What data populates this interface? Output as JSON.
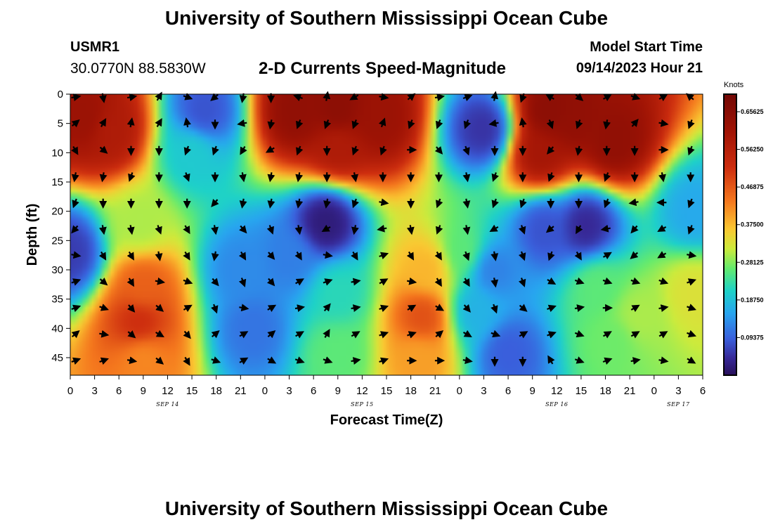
{
  "header": {
    "title": "University of Southern Mississippi Ocean Cube",
    "station_id": "USMR1",
    "station_coords": "30.0770N  88.5830W",
    "subtitle": "2-D Currents Speed-Magnitude",
    "model_start_label": "Model Start Time",
    "model_start_value": "09/14/2023 Hour 21"
  },
  "footer": {
    "title": "University of Southern Mississippi Ocean Cube"
  },
  "chart_data": {
    "type": "heatmap",
    "title": "2-D Currents Speed-Magnitude",
    "xlabel": "Forecast Time(Z)",
    "ylabel": "Depth (ft)",
    "x_range_hours": [
      0,
      78
    ],
    "y_range_ft": [
      0,
      48
    ],
    "x_tick_labels": [
      "0",
      "3",
      "6",
      "9",
      "12",
      "15",
      "18",
      "21",
      "0",
      "3",
      "6",
      "9",
      "12",
      "15",
      "18",
      "21",
      "0",
      "3",
      "6",
      "9",
      "12",
      "15",
      "18",
      "21",
      "0",
      "3",
      "6"
    ],
    "y_ticks": [
      0,
      5,
      10,
      15,
      20,
      25,
      30,
      35,
      40,
      45
    ],
    "date_labels": [
      {
        "text": "SEP 14",
        "hour": 12
      },
      {
        "text": "SEP 15",
        "hour": 36
      },
      {
        "text": "SEP 16",
        "hour": 60
      },
      {
        "text": "SEP 17",
        "hour": 75
      }
    ],
    "colorbar": {
      "label": "Knots",
      "range": [
        0,
        0.7
      ],
      "ticks": [
        "0.65625",
        "0.56250",
        "0.46875",
        "0.37500",
        "0.28125",
        "0.18750",
        "0.09375"
      ],
      "tick_values": [
        0.65625,
        0.5625,
        0.46875,
        0.375,
        0.28125,
        0.1875,
        0.09375
      ]
    },
    "speed_blobs": [
      {
        "x": 2,
        "y": 4,
        "v": 0.62
      },
      {
        "x": 5,
        "y": 6,
        "v": 0.58
      },
      {
        "x": 8.5,
        "y": 39,
        "v": 0.52
      },
      {
        "x": 9,
        "y": 33,
        "v": 0.46
      },
      {
        "x": 8.5,
        "y": 22,
        "v": 0.3
      },
      {
        "x": 9,
        "y": 45,
        "v": 0.42
      },
      {
        "x": 16.5,
        "y": 3,
        "v": 0.08
      },
      {
        "x": 15,
        "y": 10,
        "v": 0.2
      },
      {
        "x": 0,
        "y": 27,
        "v": 0.06
      },
      {
        "x": 21,
        "y": 30,
        "v": 0.13
      },
      {
        "x": 22.5,
        "y": 40,
        "v": 0.11
      },
      {
        "x": 27,
        "y": 28,
        "v": 0.12
      },
      {
        "x": 28,
        "y": 3,
        "v": 0.64
      },
      {
        "x": 33,
        "y": 3,
        "v": 0.65
      },
      {
        "x": 38,
        "y": 4,
        "v": 0.62
      },
      {
        "x": 33,
        "y": 8.5,
        "v": 0.58
      },
      {
        "x": 31.5,
        "y": 22,
        "v": 0.02
      },
      {
        "x": 33,
        "y": 34,
        "v": 0.22
      },
      {
        "x": 33,
        "y": 44,
        "v": 0.26
      },
      {
        "x": 43.5,
        "y": 38,
        "v": 0.48
      },
      {
        "x": 44,
        "y": 30,
        "v": 0.38
      },
      {
        "x": 43,
        "y": 45,
        "v": 0.4
      },
      {
        "x": 48.5,
        "y": 27,
        "v": 0.26
      },
      {
        "x": 50,
        "y": 37,
        "v": 0.17
      },
      {
        "x": 51,
        "y": 6,
        "v": 0.05
      },
      {
        "x": 52,
        "y": 30,
        "v": 0.12
      },
      {
        "x": 54,
        "y": 44,
        "v": 0.09
      },
      {
        "x": 59,
        "y": 3,
        "v": 0.65
      },
      {
        "x": 62,
        "y": 4,
        "v": 0.64
      },
      {
        "x": 67,
        "y": 8,
        "v": 0.64
      },
      {
        "x": 58,
        "y": 10,
        "v": 0.6
      },
      {
        "x": 63.5,
        "y": 22.5,
        "v": 0.04
      },
      {
        "x": 58.5,
        "y": 23,
        "v": 0.08
      },
      {
        "x": 65,
        "y": 33,
        "v": 0.26
      },
      {
        "x": 67,
        "y": 42,
        "v": 0.27
      },
      {
        "x": 70,
        "y": 38,
        "v": 0.3
      },
      {
        "x": 77,
        "y": 34,
        "v": 0.33
      },
      {
        "x": 77,
        "y": 20,
        "v": 0.16
      }
    ],
    "vector_directions_deg": [
      [
        80,
        170,
        80,
        30,
        110,
        230,
        190,
        180,
        290,
        10,
        240,
        100,
        50,
        80,
        70,
        10,
        200,
        300,
        130,
        60,
        110,
        60,
        310
      ],
      [
        50,
        30,
        10,
        30,
        350,
        180,
        260,
        190,
        200,
        200,
        200,
        20,
        200,
        200,
        200,
        260,
        350,
        160,
        200,
        190,
        40,
        100,
        200
      ],
      [
        150,
        130,
        180,
        180,
        200,
        200,
        210,
        240,
        200,
        180,
        200,
        200,
        90,
        140,
        160,
        180,
        180,
        220,
        190,
        180,
        180,
        90,
        200
      ],
      [
        190,
        190,
        200,
        180,
        160,
        180,
        170,
        190,
        190,
        180,
        170,
        180,
        180,
        180,
        170,
        200,
        180,
        200,
        180,
        200,
        180,
        170,
        180
      ],
      [
        200,
        180,
        180,
        180,
        180,
        220,
        190,
        190,
        190,
        190,
        200,
        100,
        180,
        200,
        170,
        200,
        200,
        180,
        180,
        200,
        260,
        270,
        200
      ],
      [
        220,
        170,
        170,
        160,
        150,
        170,
        140,
        160,
        170,
        240,
        190,
        260,
        170,
        200,
        170,
        240,
        160,
        230,
        210,
        260,
        220,
        240,
        200
      ],
      [
        100,
        150,
        150,
        170,
        150,
        190,
        150,
        140,
        150,
        100,
        150,
        70,
        150,
        150,
        160,
        170,
        160,
        200,
        150,
        60,
        230,
        240,
        100
      ],
      [
        70,
        130,
        150,
        100,
        110,
        140,
        160,
        140,
        60,
        70,
        80,
        60,
        100,
        150,
        150,
        170,
        160,
        120,
        110,
        110,
        110,
        110,
        70
      ],
      [
        70,
        110,
        140,
        130,
        60,
        160,
        100,
        60,
        80,
        40,
        80,
        70,
        60,
        120,
        140,
        160,
        130,
        70,
        80,
        90,
        60,
        80,
        110
      ],
      [
        50,
        100,
        130,
        120,
        140,
        50,
        60,
        50,
        60,
        30,
        60,
        70,
        70,
        50,
        120,
        110,
        60,
        70,
        110,
        60,
        60,
        60,
        110
      ],
      [
        70,
        70,
        100,
        130,
        150,
        110,
        60,
        120,
        110,
        110,
        80,
        70,
        90,
        90,
        100,
        180,
        180,
        330,
        110,
        70,
        80,
        100,
        120
      ]
    ]
  }
}
